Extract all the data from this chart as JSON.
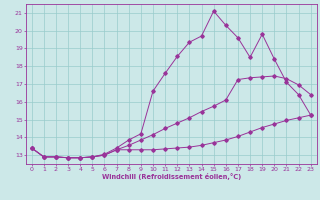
{
  "title": "",
  "xlabel": "Windchill (Refroidissement éolien,°C)",
  "background_color": "#cce8e8",
  "line_color": "#993399",
  "grid_color": "#99cccc",
  "xlim": [
    -0.5,
    23.5
  ],
  "ylim": [
    12.5,
    21.5
  ],
  "xticks": [
    0,
    1,
    2,
    3,
    4,
    5,
    6,
    7,
    8,
    9,
    10,
    11,
    12,
    13,
    14,
    15,
    16,
    17,
    18,
    19,
    20,
    21,
    22,
    23
  ],
  "yticks": [
    13,
    14,
    15,
    16,
    17,
    18,
    19,
    20,
    21
  ],
  "line1_x": [
    0,
    1,
    2,
    3,
    4,
    5,
    6,
    7,
    8,
    9,
    10,
    11,
    12,
    13,
    14,
    15,
    16,
    17,
    18,
    19,
    20,
    21,
    22,
    23
  ],
  "line1_y": [
    13.4,
    12.9,
    12.9,
    12.85,
    12.85,
    12.9,
    13.0,
    13.3,
    13.3,
    13.3,
    13.3,
    13.35,
    13.4,
    13.45,
    13.55,
    13.7,
    13.85,
    14.05,
    14.3,
    14.55,
    14.75,
    14.95,
    15.1,
    15.25
  ],
  "line2_x": [
    0,
    1,
    2,
    3,
    4,
    5,
    6,
    7,
    8,
    9,
    10,
    11,
    12,
    13,
    14,
    15,
    16,
    17,
    18,
    19,
    20,
    21,
    22,
    23
  ],
  "line2_y": [
    13.4,
    12.9,
    12.9,
    12.85,
    12.85,
    12.9,
    13.0,
    13.3,
    13.55,
    13.85,
    14.15,
    14.5,
    14.8,
    15.1,
    15.45,
    15.75,
    16.1,
    17.25,
    17.35,
    17.4,
    17.45,
    17.3,
    16.95,
    16.4
  ],
  "line3_x": [
    0,
    1,
    2,
    3,
    4,
    5,
    6,
    7,
    8,
    9,
    10,
    11,
    12,
    13,
    14,
    15,
    16,
    17,
    18,
    19,
    20,
    21,
    22,
    23
  ],
  "line3_y": [
    13.4,
    12.9,
    12.9,
    12.85,
    12.85,
    12.9,
    13.05,
    13.4,
    13.85,
    14.2,
    16.6,
    17.6,
    18.55,
    19.35,
    19.7,
    21.1,
    20.3,
    19.6,
    18.5,
    19.8,
    18.4,
    17.1,
    16.4,
    15.25
  ],
  "tick_fontsize": 4.5,
  "xlabel_fontsize": 4.8,
  "marker_size": 1.8,
  "line_width": 0.7
}
